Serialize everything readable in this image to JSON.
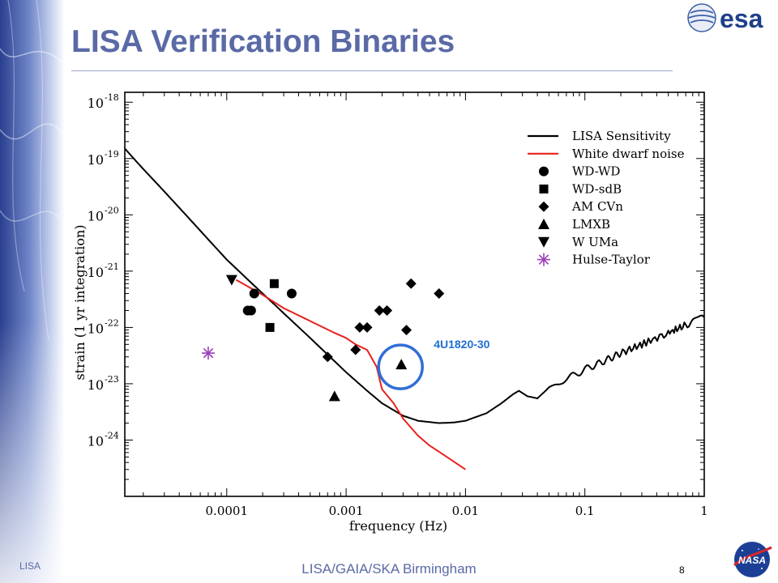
{
  "slide": {
    "title": "LISA Verification Binaries",
    "footer_left": "LISA",
    "footer_center": "LISA/GAIA/SKA Birmingham",
    "page_number": "8",
    "logo_text": "esa",
    "nasa_logo_text": "NASA"
  },
  "colors": {
    "title": "#5a6aa6",
    "sensitivity": "#000000",
    "white_dwarf_noise": "#e8201c",
    "hulse_taylor": "#9b3fb8",
    "highlight_circle": "#2f6fd6",
    "annotation_text": "#1f6fd0"
  },
  "chart_data": {
    "type": "scatter",
    "xlabel": "frequency (Hz)",
    "ylabel": "strain (1 yr integration)",
    "x_scale": "log",
    "y_scale": "log",
    "xlim": [
      1.4e-05,
      1
    ],
    "ylim": [
      1e-25,
      1.5e-18
    ],
    "x_ticks": [
      {
        "value": 0.0001,
        "label": "0.0001"
      },
      {
        "value": 0.001,
        "label": "0.001"
      },
      {
        "value": 0.01,
        "label": "0.01"
      },
      {
        "value": 0.1,
        "label": "0.1"
      },
      {
        "value": 1,
        "label": "1"
      }
    ],
    "y_ticks": [
      {
        "value": 1e-18,
        "base": "10",
        "exp": "-18"
      },
      {
        "value": 1e-19,
        "base": "10",
        "exp": "-19"
      },
      {
        "value": 1e-20,
        "base": "10",
        "exp": "-20"
      },
      {
        "value": 1e-21,
        "base": "10",
        "exp": "-21"
      },
      {
        "value": 1e-22,
        "base": "10",
        "exp": "-22"
      },
      {
        "value": 1e-23,
        "base": "10",
        "exp": "-23"
      },
      {
        "value": 1e-24,
        "base": "10",
        "exp": "-24"
      }
    ],
    "legend_position": "top-right",
    "lines": [
      {
        "name": "LISA Sensitivity",
        "points": [
          [
            1.4e-05,
            1.5e-19
          ],
          [
            2e-05,
            6.5e-20
          ],
          [
            3e-05,
            2.6e-20
          ],
          [
            5e-05,
            8e-21
          ],
          [
            0.0001,
            1.6e-21
          ],
          [
            0.0002,
            4e-22
          ],
          [
            0.0005,
            6.5e-23
          ],
          [
            0.001,
            1.6e-23
          ],
          [
            0.0015,
            7.5e-24
          ],
          [
            0.002,
            4.5e-24
          ],
          [
            0.003,
            2.7e-24
          ],
          [
            0.004,
            2.2e-24
          ],
          [
            0.006,
            2e-24
          ],
          [
            0.008,
            2.05e-24
          ],
          [
            0.01,
            2.2e-24
          ],
          [
            0.015,
            3e-24
          ],
          [
            0.02,
            4.5e-24
          ],
          [
            0.025,
            6.5e-24
          ],
          [
            0.028,
            7.5e-24
          ],
          [
            0.033,
            6e-24
          ],
          [
            0.04,
            5.5e-24
          ],
          [
            0.05,
            8.5e-24
          ],
          [
            0.06,
            1e-23
          ],
          [
            0.08,
            1.4e-23
          ],
          [
            0.1,
            1.8e-23
          ],
          [
            0.15,
            2.6e-23
          ],
          [
            0.2,
            3.5e-23
          ],
          [
            0.3,
            5e-23
          ],
          [
            0.5,
            8e-23
          ],
          [
            0.7,
            1.1e-22
          ],
          [
            1,
            1.5e-22
          ]
        ]
      },
      {
        "name": "White dwarf noise",
        "points": [
          [
            0.00012,
            7e-22
          ],
          [
            0.0002,
            3.8e-22
          ],
          [
            0.0003,
            2.2e-22
          ],
          [
            0.0005,
            1.3e-22
          ],
          [
            0.0008,
            8e-23
          ],
          [
            0.001,
            6.5e-23
          ],
          [
            0.0012,
            5e-23
          ],
          [
            0.0015,
            4e-23
          ],
          [
            0.0018,
            2e-23
          ],
          [
            0.002,
            8e-24
          ],
          [
            0.0025,
            4.5e-24
          ],
          [
            0.003,
            2.4e-24
          ],
          [
            0.004,
            1.2e-24
          ],
          [
            0.005,
            8e-25
          ],
          [
            0.007,
            5e-25
          ],
          [
            0.01,
            3e-25
          ]
        ]
      }
    ],
    "series": [
      {
        "name": "WD-WD",
        "marker": "circle",
        "points": [
          [
            0.00015,
            2e-22
          ],
          [
            0.00016,
            2e-22
          ],
          [
            0.00017,
            4e-22
          ],
          [
            0.00035,
            4e-22
          ]
        ]
      },
      {
        "name": "WD-sdB",
        "marker": "square",
        "points": [
          [
            0.00025,
            6e-22
          ],
          [
            0.00023,
            1e-22
          ]
        ]
      },
      {
        "name": "AM CVn",
        "marker": "diamond",
        "points": [
          [
            0.0007,
            3e-23
          ],
          [
            0.0012,
            4e-23
          ],
          [
            0.0013,
            1e-22
          ],
          [
            0.0015,
            1e-22
          ],
          [
            0.0019,
            2e-22
          ],
          [
            0.0022,
            2e-22
          ],
          [
            0.0032,
            9e-23
          ],
          [
            0.0035,
            6e-22
          ],
          [
            0.006,
            4e-22
          ]
        ]
      },
      {
        "name": "LMXB",
        "marker": "triangle-up",
        "points": [
          [
            0.0008,
            6e-24
          ],
          [
            0.0029,
            2.2e-23
          ]
        ]
      },
      {
        "name": "W UMa",
        "marker": "triangle-down",
        "points": [
          [
            0.00011,
            7e-22
          ]
        ]
      },
      {
        "name": "Hulse-Taylor",
        "marker": "asterisk",
        "points": [
          [
            7e-05,
            3.5e-23
          ]
        ]
      }
    ],
    "annotations": [
      {
        "text": "4U1820-30",
        "x": 0.0029,
        "y": 2.2e-23
      }
    ]
  }
}
